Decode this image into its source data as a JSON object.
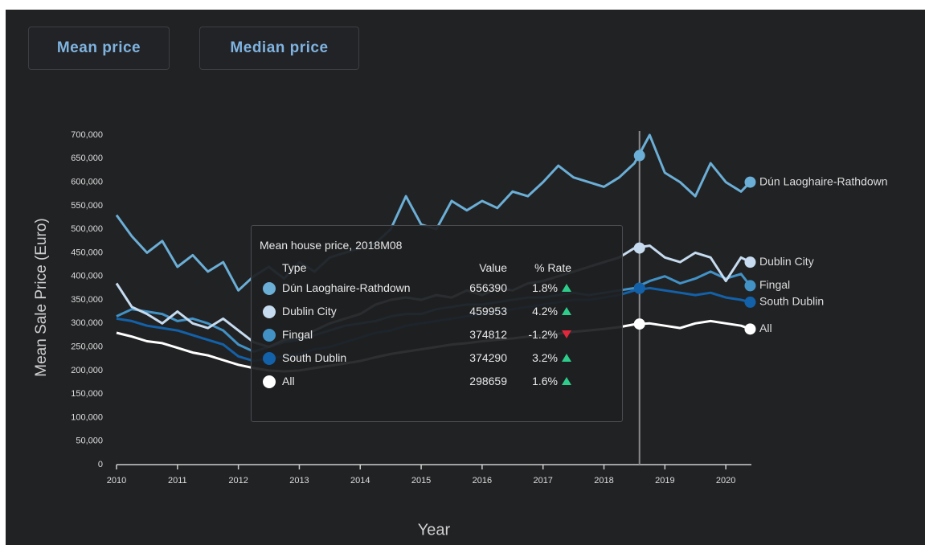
{
  "buttons": [
    "Mean price",
    "Median price"
  ],
  "chart_data": {
    "type": "line",
    "y_label": "Mean Sale Price (Euro)",
    "x_label": "Year",
    "xlim": [
      2010,
      2020.42
    ],
    "xticks": [
      2010,
      2011,
      2012,
      2013,
      2014,
      2015,
      2016,
      2017,
      2018,
      2019,
      2020
    ],
    "ylim": [
      0,
      700000
    ],
    "yticks": [
      0,
      {
        "value": 50000,
        "label": "50,000"
      },
      {
        "value": 100000,
        "label": "100,000"
      },
      {
        "value": 150000,
        "label": "150,000"
      },
      {
        "value": 200000,
        "label": "200,000"
      },
      {
        "value": 250000,
        "label": "250,000"
      },
      {
        "value": 300000,
        "label": "300,000"
      },
      {
        "value": 350000,
        "label": "350,000"
      },
      {
        "value": 400000,
        "label": "400,000"
      },
      {
        "value": 450000,
        "label": "450,000"
      },
      {
        "value": 500000,
        "label": "500,000"
      },
      {
        "value": 550000,
        "label": "550,000"
      },
      {
        "value": 600000,
        "label": "600,000"
      },
      {
        "value": 650000,
        "label": "650,000"
      },
      {
        "value": 700000,
        "label": "700,000"
      }
    ],
    "x": [
      2010,
      2010.25,
      2010.5,
      2010.75,
      2011,
      2011.25,
      2011.5,
      2011.75,
      2012,
      2012.25,
      2012.5,
      2012.75,
      2013,
      2013.25,
      2013.5,
      2013.75,
      2014,
      2014.25,
      2014.5,
      2014.75,
      2015,
      2015.25,
      2015.5,
      2015.75,
      2016,
      2016.25,
      2016.5,
      2016.75,
      2017,
      2017.25,
      2017.5,
      2017.75,
      2018,
      2018.25,
      2018.5,
      2018.75,
      2019,
      2019.25,
      2019.5,
      2019.75,
      2020,
      2020.25,
      2020.4
    ],
    "series": [
      {
        "name": "Dún Laoghaire-Rathdown",
        "color": "#6baed6",
        "values": [
          530000,
          485000,
          450000,
          475000,
          420000,
          445000,
          410000,
          430000,
          370000,
          400000,
          420000,
          395000,
          430000,
          410000,
          440000,
          450000,
          460000,
          470000,
          500000,
          570000,
          510000,
          500000,
          560000,
          540000,
          560000,
          545000,
          580000,
          570000,
          600000,
          635000,
          610000,
          600000,
          590000,
          610000,
          640000,
          700000,
          620000,
          600000,
          570000,
          640000,
          600000,
          580000,
          600000
        ]
      },
      {
        "name": "Dublin City",
        "color": "#c6dbef",
        "values": [
          385000,
          335000,
          320000,
          300000,
          325000,
          300000,
          290000,
          310000,
          285000,
          260000,
          250000,
          265000,
          270000,
          285000,
          300000,
          310000,
          320000,
          340000,
          350000,
          355000,
          350000,
          360000,
          355000,
          370000,
          360000,
          375000,
          370000,
          385000,
          390000,
          400000,
          410000,
          420000,
          430000,
          440000,
          460000,
          465000,
          440000,
          430000,
          450000,
          440000,
          390000,
          440000,
          430000
        ]
      },
      {
        "name": "Fingal",
        "color": "#4292c6",
        "values": [
          315000,
          330000,
          325000,
          320000,
          305000,
          310000,
          300000,
          285000,
          255000,
          240000,
          250000,
          260000,
          265000,
          275000,
          285000,
          295000,
          300000,
          305000,
          315000,
          320000,
          320000,
          330000,
          335000,
          340000,
          340000,
          345000,
          350000,
          355000,
          355000,
          360000,
          365000,
          360000,
          365000,
          370000,
          375000,
          390000,
          400000,
          385000,
          395000,
          410000,
          395000,
          405000,
          380000
        ]
      },
      {
        "name": "South Dublin",
        "color": "#1361a9",
        "values": [
          310000,
          305000,
          295000,
          290000,
          285000,
          275000,
          265000,
          255000,
          230000,
          220000,
          225000,
          230000,
          235000,
          245000,
          250000,
          260000,
          270000,
          280000,
          285000,
          295000,
          300000,
          305000,
          310000,
          315000,
          320000,
          325000,
          330000,
          335000,
          340000,
          345000,
          350000,
          350000,
          355000,
          360000,
          370000,
          375000,
          370000,
          365000,
          360000,
          365000,
          355000,
          350000,
          345000
        ]
      },
      {
        "name": "All",
        "color": "#ffffff",
        "values": [
          280000,
          272000,
          262000,
          258000,
          248000,
          238000,
          232000,
          222000,
          212000,
          205000,
          200000,
          198000,
          200000,
          205000,
          210000,
          215000,
          220000,
          228000,
          235000,
          240000,
          245000,
          250000,
          255000,
          258000,
          262000,
          265000,
          268000,
          272000,
          275000,
          278000,
          282000,
          285000,
          288000,
          292000,
          298000,
          300000,
          295000,
          290000,
          300000,
          305000,
          300000,
          295000,
          288000
        ]
      }
    ],
    "tooltip": {
      "title": "Mean house price, 2018M08",
      "hover_x": 2018.583,
      "columns": [
        "Type",
        "Value",
        "% Rate"
      ],
      "rows": [
        {
          "value": 656390,
          "rate": 1.8,
          "rate_label": "1.8%"
        },
        {
          "value": 459953,
          "rate": 4.2,
          "rate_label": "4.2%"
        },
        {
          "value": 374812,
          "rate": -1.2,
          "rate_label": "-1.2%"
        },
        {
          "value": 374290,
          "rate": 3.2,
          "rate_label": "3.2%"
        },
        {
          "value": 298659,
          "rate": 1.6,
          "rate_label": "1.6%"
        }
      ]
    }
  }
}
